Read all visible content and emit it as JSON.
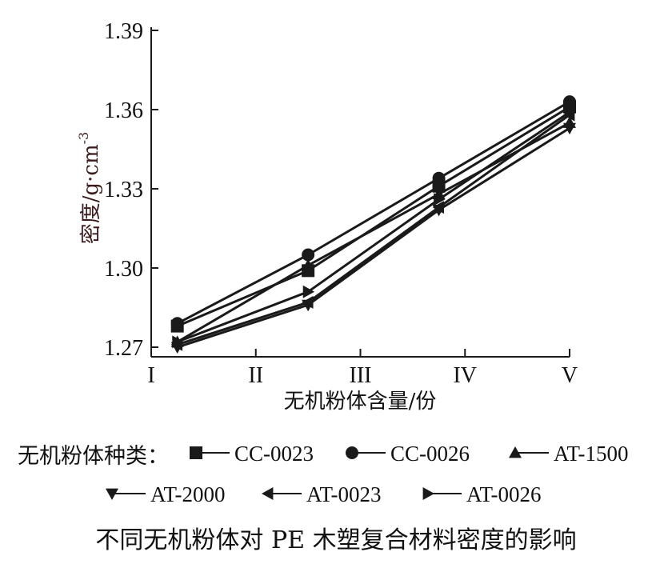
{
  "chart_data": {
    "type": "line",
    "title": "不同无机粉体对 PE 木塑复合材料密度的影响",
    "xlabel": "无机粉体含量/份",
    "ylabel": "密度/g·cm",
    "ylabel_sup": "-3",
    "x_ticks": [
      "I",
      "II",
      "III",
      "IV",
      "V"
    ],
    "x": [
      1.25,
      2.5,
      3.75,
      5
    ],
    "xlim": [
      1,
      5
    ],
    "ylim": [
      1.27,
      1.39
    ],
    "y_ticks": [
      "1.27",
      "1.30",
      "1.33",
      "1.36",
      "1.39"
    ],
    "grid": false,
    "legend_title": "无机粉体种类：",
    "legend_placement": "bottom",
    "series": [
      {
        "name": "CC-0023",
        "marker": "square",
        "values": [
          1.278,
          1.299,
          1.331,
          1.361
        ]
      },
      {
        "name": "CC-0026",
        "marker": "circle",
        "values": [
          1.279,
          1.305,
          1.334,
          1.363
        ]
      },
      {
        "name": "AT-1500",
        "marker": "triangle-up",
        "values": [
          1.272,
          1.301,
          1.328,
          1.355
        ]
      },
      {
        "name": "AT-2000",
        "marker": "triangle-down",
        "values": [
          1.27,
          1.286,
          1.322,
          1.353
        ]
      },
      {
        "name": "AT-0023",
        "marker": "triangle-left",
        "values": [
          1.271,
          1.287,
          1.323,
          1.358
        ]
      },
      {
        "name": "AT-0026",
        "marker": "triangle-right",
        "values": [
          1.272,
          1.291,
          1.326,
          1.359
        ]
      }
    ]
  },
  "colors": {
    "line": "#1a1a1a",
    "ylabel": "#3a1c1c"
  }
}
